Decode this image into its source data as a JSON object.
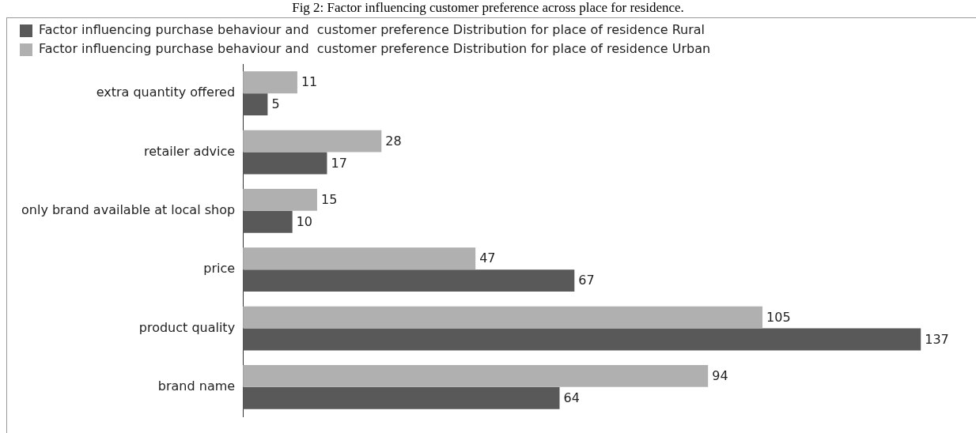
{
  "chart_data": {
    "type": "bar",
    "orientation": "horizontal",
    "title": "Fig 2: Factor influencing customer preference across place for residence.",
    "categories": [
      "extra quantity offered",
      "retailer advice",
      "only brand available at local shop",
      "price",
      "product quality",
      "brand name"
    ],
    "series": [
      {
        "name": "Factor influencing purchase behaviour and  customer preference Distribution for place of residence Rural",
        "color": "#595959",
        "values": [
          5,
          17,
          10,
          67,
          137,
          64
        ]
      },
      {
        "name": "Factor influencing purchase behaviour and  customer preference Distribution for place of residence Urban",
        "color": "#b0b0b0",
        "values": [
          11,
          28,
          15,
          47,
          105,
          94
        ]
      }
    ],
    "data_labels": true,
    "legend": "top left",
    "tick_labels": "y",
    "grid": false
  }
}
